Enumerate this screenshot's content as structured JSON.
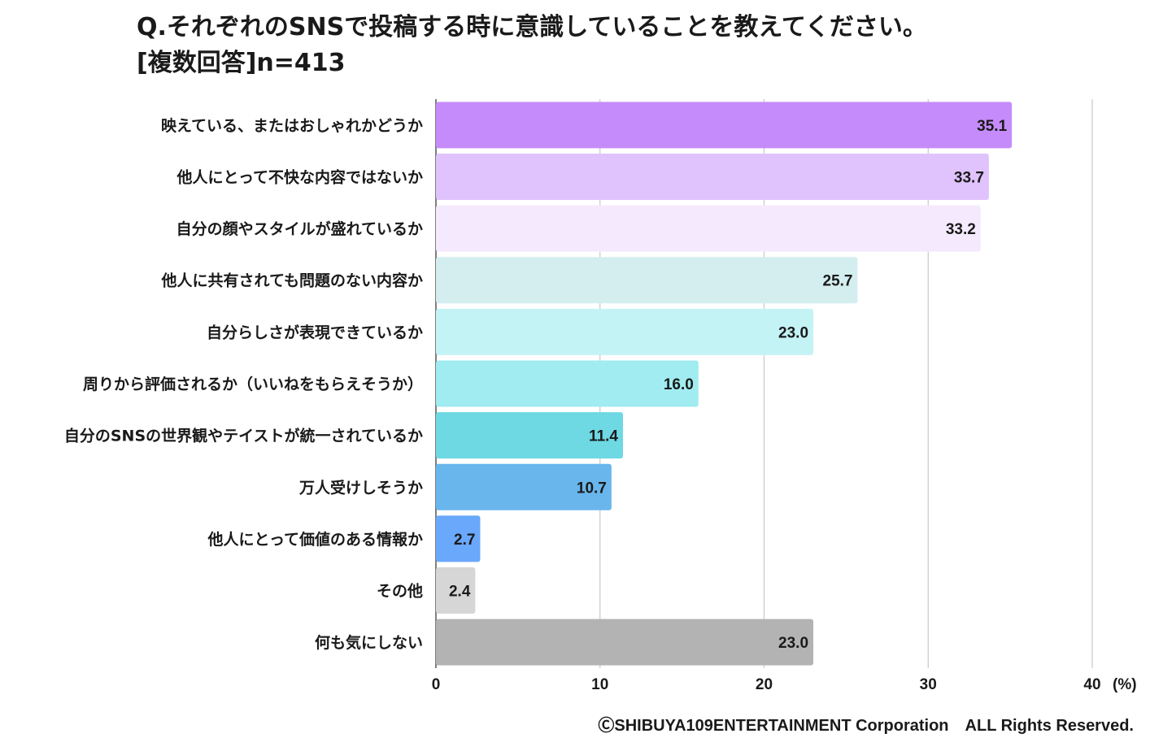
{
  "chart_data": {
    "type": "bar",
    "orientation": "horizontal",
    "title": "Q.それぞれのSNSで投稿する時に意識していることを教えてください。",
    "subtitle": "[複数回答]n=413",
    "categories": [
      "映えている、またはおしゃれかどうか",
      "他人にとって不快な内容ではないか",
      "自分の顔やスタイルが盛れているか",
      "他人に共有されても問題のない内容か",
      "自分らしさが表現できているか",
      "周りから評価されるか（いいねをもらえそうか）",
      "自分のSNSの世界観やテイストが統一されているか",
      "万人受けしそうか",
      "他人にとって価値のある情報か",
      "その他",
      "何も気にしない"
    ],
    "values": [
      35.1,
      33.7,
      33.2,
      25.7,
      23.0,
      16.0,
      11.4,
      10.7,
      2.7,
      2.4,
      23.0
    ],
    "value_labels": [
      "35.1",
      "33.7",
      "33.2",
      "25.7",
      "23.0",
      "16.0",
      "11.4",
      "10.7",
      "2.7",
      "2.4",
      "23.0"
    ],
    "colors": [
      "#c58bfb",
      "#e0c3fc",
      "#f5eafd",
      "#d4eef0",
      "#c4f3f5",
      "#a0ecf0",
      "#6ed8e3",
      "#68b6ec",
      "#6aa8fb",
      "#d6d6d6",
      "#b3b3b3"
    ],
    "xlim": [
      0,
      40
    ],
    "ticks": [
      "0",
      "10",
      "20",
      "30",
      "40"
    ],
    "unit": "(%)",
    "grid": true
  },
  "footer": {
    "copyright": "ⒸSHIBUYA109ENTERTAINMENT Corporation　ALL Rights Reserved."
  }
}
